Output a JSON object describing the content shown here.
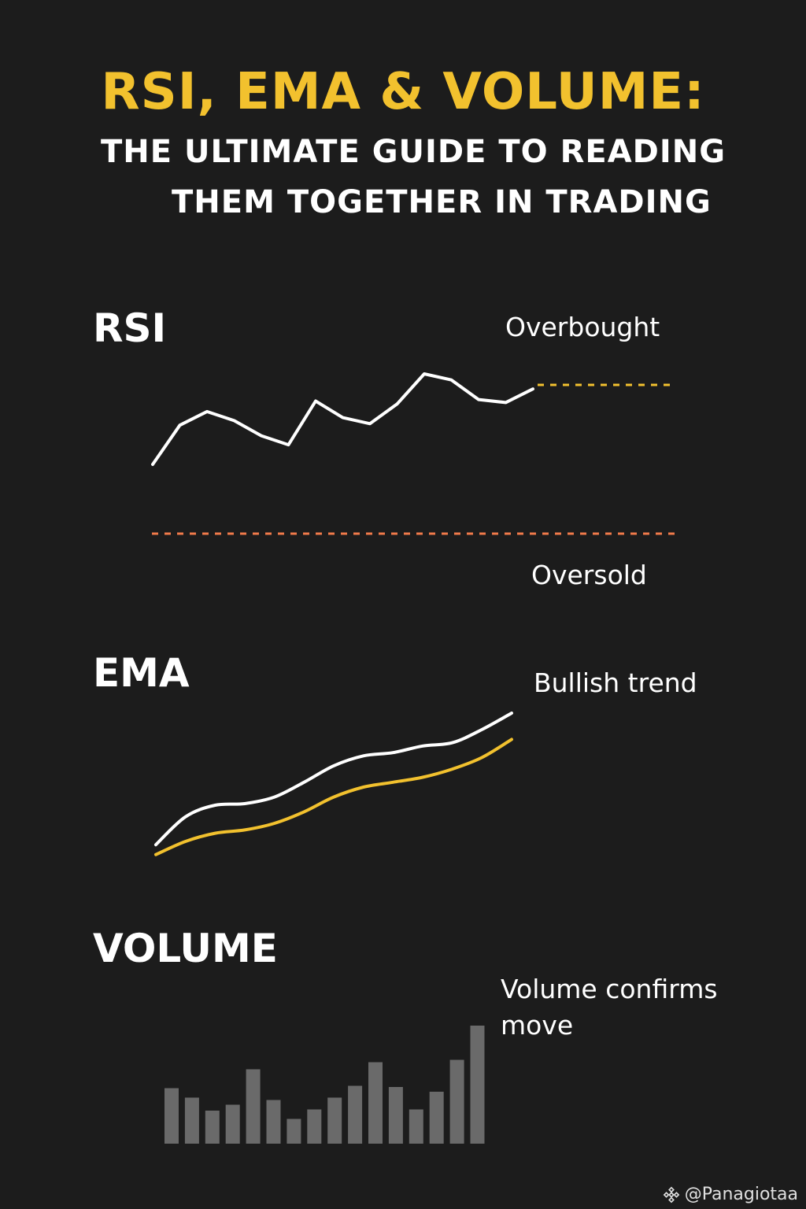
{
  "header": {
    "title": "RSI, EMA & VOLUME:",
    "subtitle_line1": "THE ULTIMATE GUIDE TO READING",
    "subtitle_line2": "THEM TOGETHER IN TRADING"
  },
  "rsi": {
    "label": "RSI",
    "overbought_label": "Overbought",
    "oversold_label": "Oversold",
    "line_color": "#ffffff",
    "overbought_color": "#f2c12e",
    "oversold_color": "#f07a4a",
    "series": [
      0.2,
      0.46,
      0.55,
      0.49,
      0.39,
      0.33,
      0.62,
      0.51,
      0.47,
      0.6,
      0.8,
      0.76,
      0.63,
      0.61,
      0.7
    ]
  },
  "ema": {
    "label": "EMA",
    "note": "Bullish trend",
    "fast_color": "#ffffff",
    "slow_color": "#f2c12e",
    "fast_series": [
      0.2,
      0.37,
      0.44,
      0.45,
      0.49,
      0.58,
      0.68,
      0.74,
      0.76,
      0.8,
      0.82,
      0.9,
      1.0
    ],
    "slow_series": [
      0.14,
      0.22,
      0.27,
      0.29,
      0.33,
      0.4,
      0.49,
      0.55,
      0.58,
      0.61,
      0.66,
      0.73,
      0.84
    ]
  },
  "volume": {
    "label": "VOLUME",
    "note_line1": "Volume confirms",
    "note_line2": "move",
    "bar_color": "#6a6a6a",
    "bars": [
      0.47,
      0.39,
      0.28,
      0.33,
      0.63,
      0.37,
      0.21,
      0.29,
      0.39,
      0.49,
      0.69,
      0.48,
      0.29,
      0.44,
      0.71,
      1.0
    ]
  },
  "watermark": {
    "icon": "binance-diamond-icon",
    "text": "@Panagiotaa"
  }
}
